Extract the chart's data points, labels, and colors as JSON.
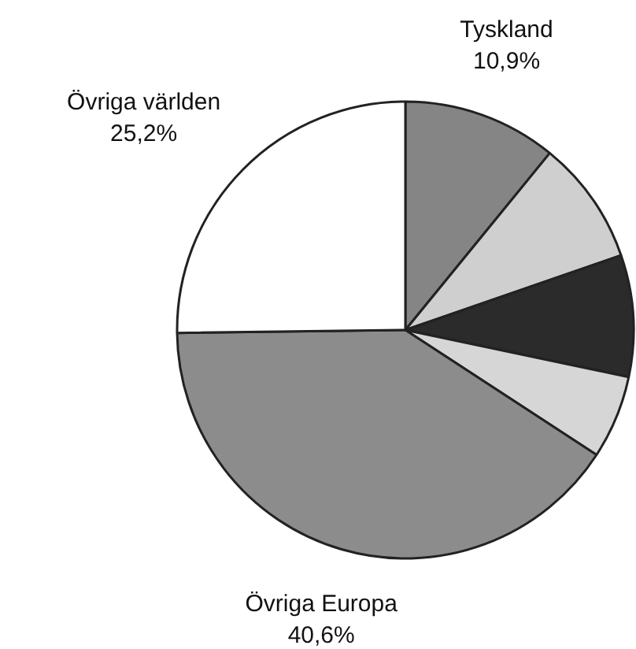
{
  "chart_data": {
    "type": "pie",
    "categories": [
      "Tyskland",
      null,
      null,
      null,
      "Övriga Europa",
      "Övriga världen"
    ],
    "values": [
      10.9,
      8.8,
      8.6,
      5.9,
      40.6,
      25.2
    ],
    "colors": [
      "#858585",
      "#cfcfcf",
      "#2b2b2b",
      "#d6d6d6",
      "#8c8c8c",
      "#ffffff"
    ],
    "value_labels": [
      "10,9%",
      null,
      null,
      null,
      "40,6%",
      "25,2%"
    ]
  }
}
